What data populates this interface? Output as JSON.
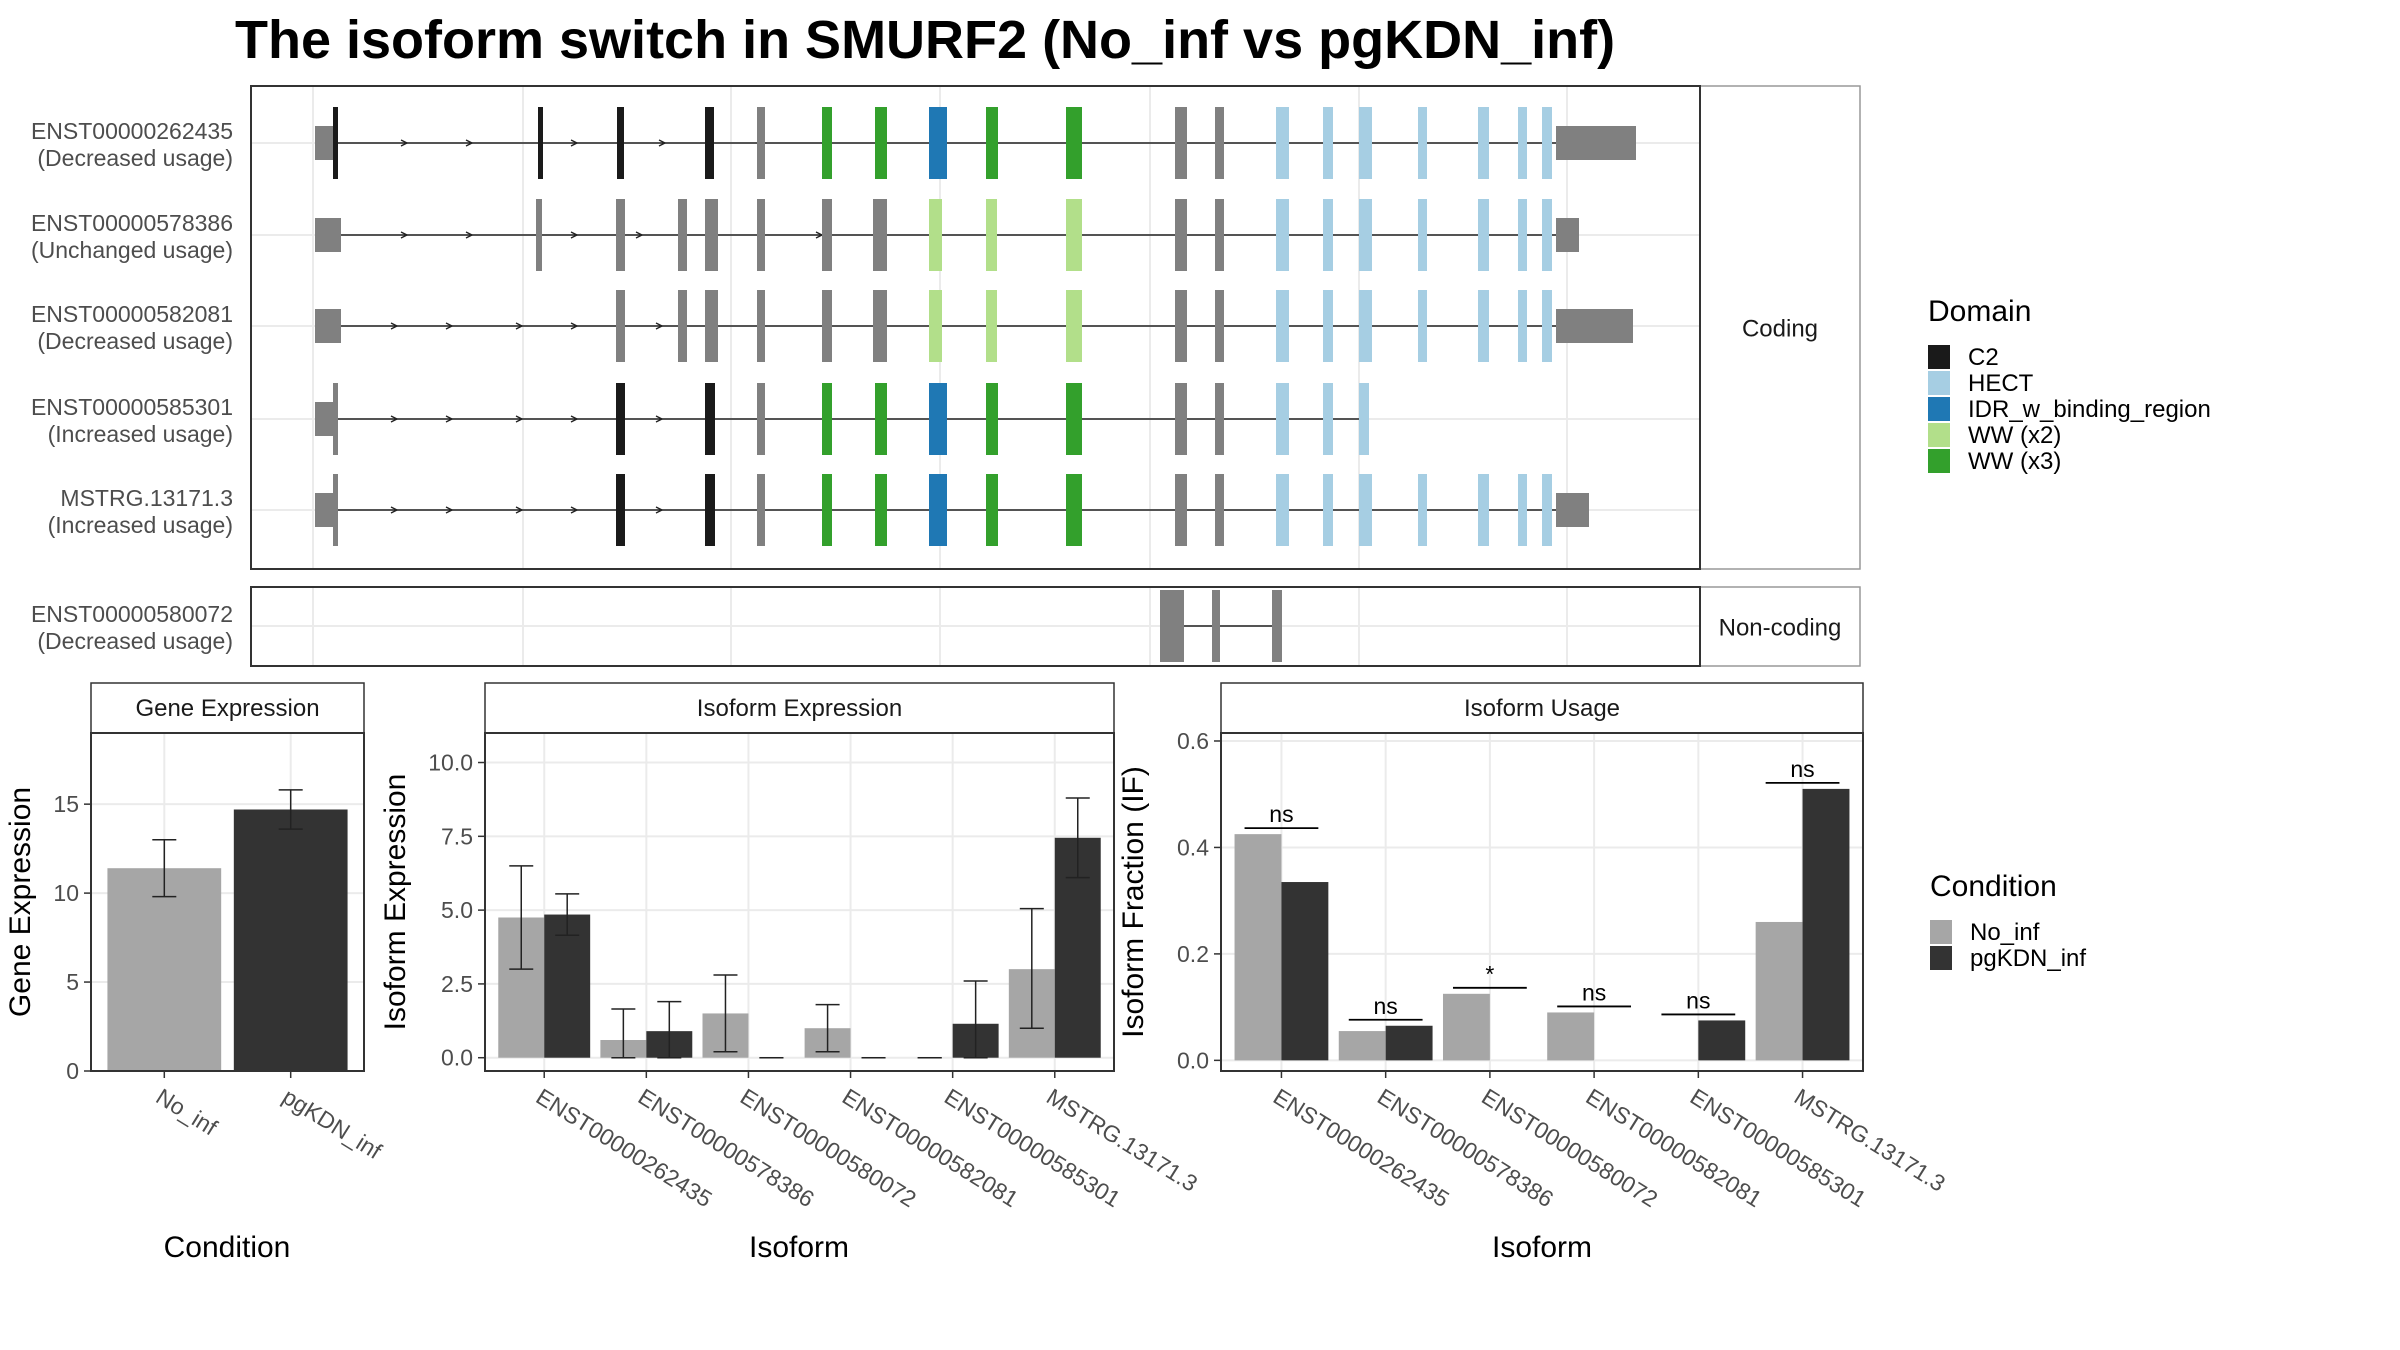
{
  "title": "The isoform switch in SMURF2 (No_inf vs pgKDN_inf)",
  "colors": {
    "exon": "#808080",
    "C2": "#1a1a1a",
    "HECT": "#a6cee3",
    "IDR_w_binding_region": "#1f78b4",
    "WW_x2": "#b2df8a",
    "WW_x3": "#33a02c",
    "No_inf": "#a6a6a6",
    "pgKDN_inf": "#333333",
    "panel_border": "#333333",
    "grid": "#ebebeb",
    "strip_bg": "#ffffff"
  },
  "structure": {
    "facets": [
      "Coding",
      "Non-coding"
    ],
    "transcripts": [
      {
        "id": "ENST00000262435",
        "usage": "(Decreased usage)",
        "facet": "Coding"
      },
      {
        "id": "ENST00000578386",
        "usage": "(Unchanged usage)",
        "facet": "Coding"
      },
      {
        "id": "ENST00000582081",
        "usage": "(Decreased usage)",
        "facet": "Coding"
      },
      {
        "id": "ENST00000585301",
        "usage": "(Increased usage)",
        "facet": "Coding"
      },
      {
        "id": "MSTRG.13171.3",
        "usage": "(Increased usage)",
        "facet": "Coding"
      },
      {
        "id": "ENST00000580072",
        "usage": "(Decreased usage)",
        "facet": "Non-coding"
      }
    ]
  },
  "legend_domain": {
    "title": "Domain",
    "items": [
      {
        "label": "C2",
        "color_key": "C2"
      },
      {
        "label": "HECT",
        "color_key": "HECT"
      },
      {
        "label": "IDR_w_binding_region",
        "color_key": "IDR_w_binding_region"
      },
      {
        "label": "WW (x2)",
        "color_key": "WW_x2"
      },
      {
        "label": "WW (x3)",
        "color_key": "WW_x3"
      }
    ]
  },
  "legend_condition": {
    "title": "Condition",
    "items": [
      {
        "label": "No_inf",
        "color_key": "No_inf"
      },
      {
        "label": "pgKDN_inf",
        "color_key": "pgKDN_inf"
      }
    ]
  },
  "chart_data": [
    {
      "type": "bar",
      "title": "Gene Expression",
      "xlabel": "Condition",
      "ylabel": "Gene Expression",
      "categories": [
        "No_inf",
        "pgKDN_inf"
      ],
      "values": [
        11.4,
        14.7
      ],
      "errors": [
        [
          9.8,
          13.0
        ],
        [
          13.6,
          15.8
        ]
      ],
      "ylim": [
        0,
        19
      ],
      "yticks": [
        0,
        5,
        10,
        15
      ]
    },
    {
      "type": "bar",
      "title": "Isoform Expression",
      "xlabel": "Isoform",
      "ylabel": "Isoform Expression",
      "categories": [
        "ENST00000262435",
        "ENST00000578386",
        "ENST00000580072",
        "ENST00000582081",
        "ENST00000585301",
        "MSTRG.13171.3"
      ],
      "series": [
        {
          "name": "No_inf",
          "values": [
            4.75,
            0.6,
            1.5,
            1.0,
            0.0,
            3.0
          ],
          "errors": [
            [
              3.0,
              6.5
            ],
            [
              0.0,
              1.65
            ],
            [
              0.2,
              2.8
            ],
            [
              0.2,
              1.8
            ],
            [
              0.0,
              0.0
            ],
            [
              1.0,
              5.05
            ]
          ]
        },
        {
          "name": "pgKDN_inf",
          "values": [
            4.85,
            0.9,
            0.0,
            0.0,
            1.15,
            7.45
          ],
          "errors": [
            [
              4.15,
              5.55
            ],
            [
              0.0,
              1.9
            ],
            [
              0.0,
              0.0
            ],
            [
              0.0,
              0.0
            ],
            [
              0.0,
              2.6
            ],
            [
              6.1,
              8.8
            ]
          ]
        }
      ],
      "ylim": [
        -0.45,
        11.0
      ],
      "yticks": [
        "0.0",
        "2.5",
        "5.0",
        "7.5",
        "10.0"
      ]
    },
    {
      "type": "bar",
      "title": "Isoform Usage",
      "xlabel": "Isoform",
      "ylabel": "Isoform Fraction (IF)",
      "categories": [
        "ENST00000262435",
        "ENST00000578386",
        "ENST00000580072",
        "ENST00000582081",
        "ENST00000585301",
        "MSTRG.13171.3"
      ],
      "series": [
        {
          "name": "No_inf",
          "values": [
            0.425,
            0.055,
            0.125,
            0.09,
            0.0,
            0.26
          ]
        },
        {
          "name": "pgKDN_inf",
          "values": [
            0.335,
            0.065,
            0.0,
            0.0,
            0.075,
            0.51
          ]
        }
      ],
      "significance": [
        "ns",
        "ns",
        "*",
        "ns",
        "ns",
        "ns"
      ],
      "ylim": [
        -0.02,
        0.615
      ],
      "yticks": [
        "0.0",
        "0.2",
        "0.4",
        "0.6"
      ]
    }
  ]
}
